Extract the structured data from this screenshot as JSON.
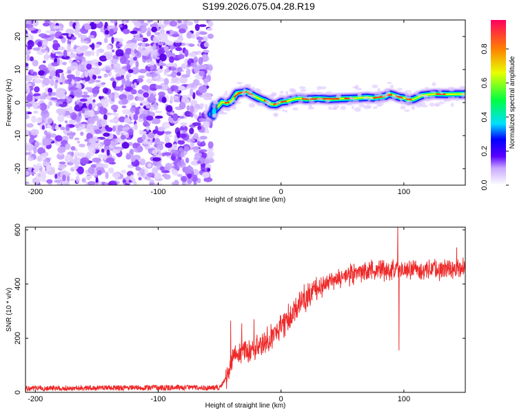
{
  "title": "S199.2026.075.04.28.R19",
  "chart_data": [
    {
      "type": "heatmap",
      "xlabel": "Height of straight line (km)",
      "ylabel": "Frequency (Hz)",
      "xlim": [
        -208,
        150
      ],
      "ylim": [
        -25,
        25
      ],
      "x_ticks": [
        -200,
        -100,
        0,
        100
      ],
      "y_ticks": [
        -20,
        -10,
        0,
        10,
        20
      ],
      "noise_region_end_km": -57,
      "ridge": {
        "x_km": [
          -57,
          -52,
          -48,
          -44,
          -40,
          -36,
          -32,
          -28,
          -24,
          -20,
          -16,
          -12,
          -8,
          -4,
          0,
          5,
          10,
          15,
          20,
          30,
          40,
          50,
          60,
          70,
          75,
          80,
          85,
          88,
          92,
          96,
          100,
          104,
          108,
          115,
          125,
          135,
          150
        ],
        "freq_hz": [
          -3.5,
          -1.5,
          0.2,
          -0.3,
          0.6,
          2.8,
          3.0,
          3.3,
          2.4,
          1.6,
          0.9,
          0.4,
          -0.5,
          -0.6,
          0.2,
          0.4,
          1.0,
          1.3,
          1.0,
          1.2,
          1.0,
          1.2,
          1.3,
          1.6,
          1.4,
          1.6,
          1.9,
          2.6,
          2.2,
          1.6,
          1.4,
          0.8,
          1.0,
          2.2,
          2.6,
          2.5,
          2.6
        ]
      },
      "colorbar": {
        "label": "Normalized spectral amplitude",
        "ticks": [
          "0.0",
          "0.2",
          "0.4",
          "0.6",
          "0.8"
        ],
        "tick_values": [
          0.0,
          0.2,
          0.4,
          0.6,
          0.8
        ],
        "range": [
          0,
          0.97
        ],
        "stops": [
          {
            "v": 0.0,
            "color": "#ffffff"
          },
          {
            "v": 0.1,
            "color": "#c9a8ff"
          },
          {
            "v": 0.17,
            "color": "#5a00ff"
          },
          {
            "v": 0.27,
            "color": "#0000ff"
          },
          {
            "v": 0.36,
            "color": "#00e0ff"
          },
          {
            "v": 0.5,
            "color": "#00ff40"
          },
          {
            "v": 0.66,
            "color": "#e8ff00"
          },
          {
            "v": 0.8,
            "color": "#ff8000"
          },
          {
            "v": 0.97,
            "color": "#ff0060"
          }
        ]
      }
    },
    {
      "type": "line",
      "xlabel": "Height of straight line (km)",
      "ylabel": "SNR (10 * v/v)",
      "xlim": [
        -208,
        150
      ],
      "ylim": [
        0,
        610
      ],
      "x_ticks": [
        -200,
        -100,
        0,
        100
      ],
      "y_ticks": [
        0,
        200,
        400,
        600
      ],
      "color": "#ee2a2a",
      "trend": {
        "x_km": [
          -208,
          -50,
          -43,
          -38,
          -30,
          -20,
          -10,
          0,
          10,
          20,
          30,
          40,
          50,
          60,
          80,
          100,
          120,
          150
        ],
        "snr": [
          15,
          18,
          60,
          140,
          150,
          160,
          195,
          240,
          300,
          350,
          390,
          410,
          425,
          440,
          450,
          455,
          450,
          460
        ]
      },
      "spikes": [
        {
          "x_km": -41,
          "snr": 265
        },
        {
          "x_km": -32,
          "snr": 255
        },
        {
          "x_km": -22,
          "snr": 270
        },
        {
          "x_km": 95,
          "snr": 620
        },
        {
          "x_km": 96,
          "snr": 155
        },
        {
          "x_km": 143,
          "snr": 535
        }
      ]
    }
  ]
}
